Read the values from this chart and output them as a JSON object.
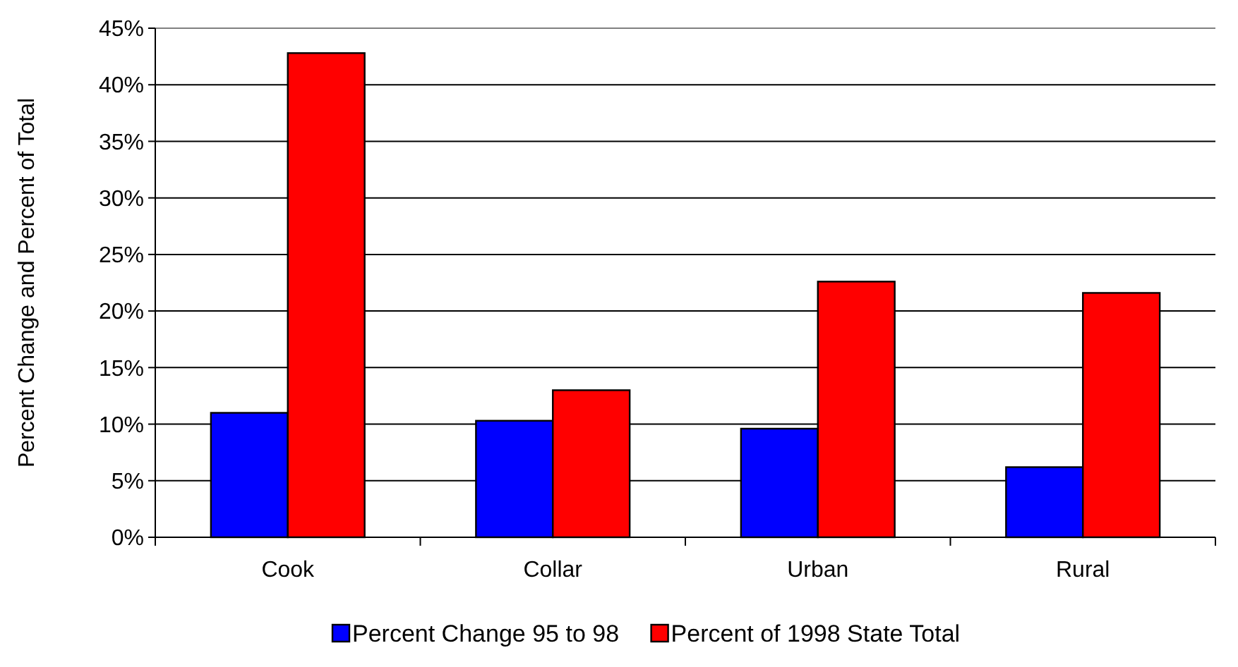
{
  "chart_data": {
    "type": "bar",
    "ylabel": "Percent Change and Percent of Total",
    "categories": [
      "Cook",
      "Collar",
      "Urban",
      "Rural"
    ],
    "series": [
      {
        "name": "Percent Change 95 to 98",
        "color": "#0000ff",
        "values": [
          11.0,
          10.3,
          9.6,
          6.2
        ]
      },
      {
        "name": "Percent of 1998 State Total",
        "color": "#ff0000",
        "values": [
          42.8,
          13.0,
          22.6,
          21.6
        ]
      }
    ],
    "ylim": [
      0,
      45
    ],
    "yticks": [
      {
        "value": 0,
        "label": "0%"
      },
      {
        "value": 5,
        "label": "5%"
      },
      {
        "value": 10,
        "label": "10%"
      },
      {
        "value": 15,
        "label": "15%"
      },
      {
        "value": 20,
        "label": "20%"
      },
      {
        "value": 25,
        "label": "25%"
      },
      {
        "value": 30,
        "label": "30%"
      },
      {
        "value": 35,
        "label": "35%"
      },
      {
        "value": 40,
        "label": "40%"
      },
      {
        "value": 45,
        "label": "45%"
      }
    ],
    "grid": "y",
    "legend": "bottom"
  }
}
